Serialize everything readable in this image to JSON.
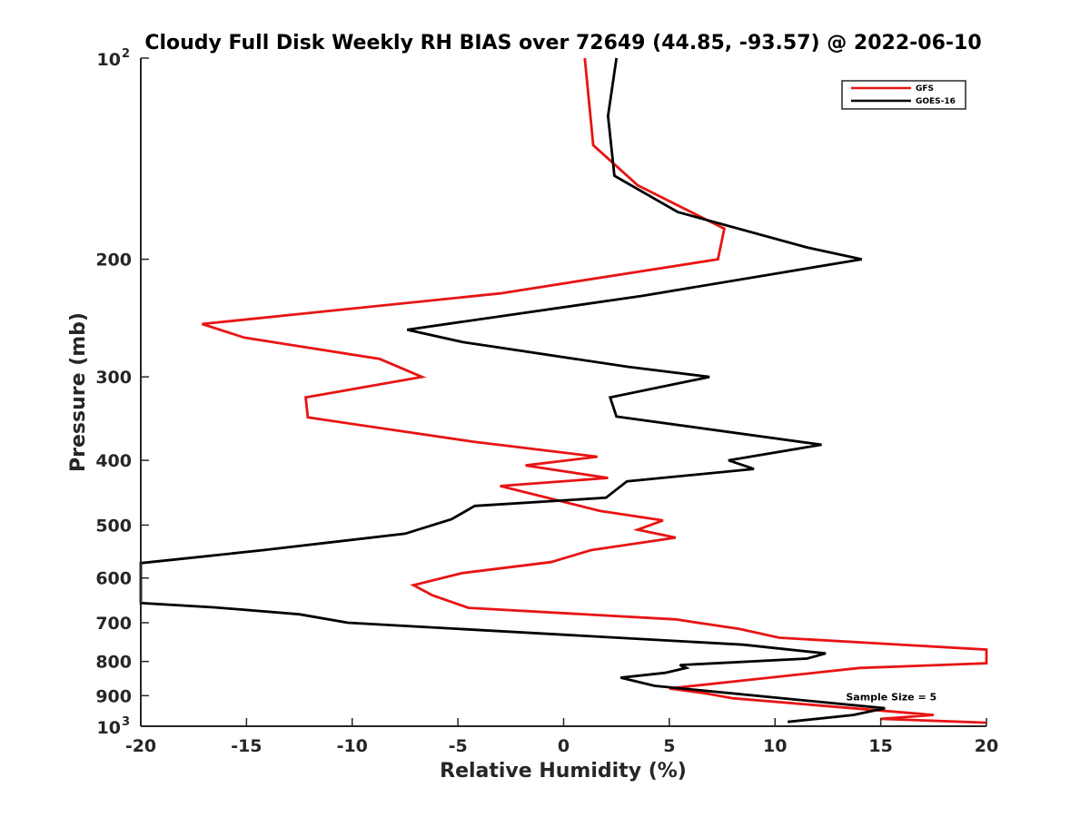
{
  "chart_data": {
    "type": "line",
    "title": "Cloudy Full Disk Weekly RH BIAS over 72649 (44.85, -93.57) @ 2022-06-10",
    "xlabel": "Relative Humidity (%)",
    "ylabel": "Pressure (mb)",
    "xlim": [
      -20,
      20
    ],
    "ylim": [
      100,
      1000
    ],
    "y_scale": "log",
    "y_reversed": true,
    "grid": false,
    "legend_position": "top-right",
    "x_ticks": [
      "-20",
      "-15",
      "-10",
      "-5",
      "0",
      "5",
      "10",
      "15",
      "20"
    ],
    "y_ticks": [
      {
        "value": 100,
        "base": "10",
        "exp": "2"
      },
      {
        "value": 200,
        "label": "200"
      },
      {
        "value": 300,
        "label": "300"
      },
      {
        "value": 400,
        "label": "400"
      },
      {
        "value": 500,
        "label": "500"
      },
      {
        "value": 600,
        "label": "600"
      },
      {
        "value": 700,
        "label": "700"
      },
      {
        "value": 800,
        "label": "800"
      },
      {
        "value": 900,
        "label": "900"
      },
      {
        "value": 1000,
        "base": "10",
        "exp": "3"
      }
    ],
    "series": [
      {
        "name": "GFS",
        "color": "#e81414",
        "points": [
          [
            1.0,
            100
          ],
          [
            1.4,
            135
          ],
          [
            3.5,
            155
          ],
          [
            7.6,
            180
          ],
          [
            7.3,
            200
          ],
          [
            -3.0,
            225
          ],
          [
            -17.1,
            250
          ],
          [
            -15.1,
            262
          ],
          [
            -8.7,
            282
          ],
          [
            -6.7,
            300
          ],
          [
            -12.2,
            322
          ],
          [
            -12.1,
            345
          ],
          [
            -4.3,
            375
          ],
          [
            1.6,
            395
          ],
          [
            -1.8,
            407
          ],
          [
            2.1,
            425
          ],
          [
            -3.0,
            437
          ],
          [
            1.7,
            476
          ],
          [
            4.7,
            492
          ],
          [
            3.5,
            508
          ],
          [
            5.3,
            522
          ],
          [
            1.3,
            545
          ],
          [
            -0.6,
            568
          ],
          [
            -4.8,
            590
          ],
          [
            -7.1,
            615
          ],
          [
            -6.2,
            637
          ],
          [
            -4.5,
            665
          ],
          [
            5.3,
            692
          ],
          [
            8.3,
            715
          ],
          [
            10.2,
            737
          ],
          [
            20,
            768
          ],
          [
            20,
            805
          ],
          [
            14.0,
            818
          ],
          [
            5.0,
            878
          ],
          [
            6.7,
            893
          ],
          [
            8.0,
            908
          ],
          [
            17.5,
            962
          ],
          [
            15.0,
            975
          ],
          [
            20,
            988
          ]
        ]
      },
      {
        "name": "GOES-16",
        "color": "#000000",
        "points": [
          [
            2.5,
            100
          ],
          [
            2.1,
            122
          ],
          [
            2.4,
            150
          ],
          [
            5.4,
            170
          ],
          [
            11.5,
            192
          ],
          [
            14.1,
            200
          ],
          [
            3.7,
            227
          ],
          [
            -7.4,
            255
          ],
          [
            -4.8,
            266
          ],
          [
            3.1,
            290
          ],
          [
            6.9,
            300
          ],
          [
            2.2,
            322
          ],
          [
            2.5,
            344
          ],
          [
            12.2,
            379
          ],
          [
            7.8,
            400
          ],
          [
            9.0,
            412
          ],
          [
            3.0,
            430
          ],
          [
            2.0,
            455
          ],
          [
            -4.2,
            468
          ],
          [
            -5.3,
            490
          ],
          [
            -7.5,
            515
          ],
          [
            -14.2,
            545
          ],
          [
            -17.7,
            560
          ],
          [
            -20,
            570
          ],
          [
            -20,
            654
          ],
          [
            -16.5,
            664
          ],
          [
            -12.5,
            680
          ],
          [
            -10.2,
            700
          ],
          [
            8.5,
            755
          ],
          [
            12.4,
            778
          ],
          [
            11.5,
            792
          ],
          [
            5.5,
            810
          ],
          [
            5.8,
            818
          ],
          [
            4.8,
            832
          ],
          [
            2.7,
            846
          ],
          [
            4.3,
            870
          ],
          [
            15.2,
            940
          ],
          [
            13.7,
            962
          ],
          [
            10.6,
            985
          ]
        ]
      }
    ],
    "annotations": [
      {
        "text": "Sample Size = 5",
        "x": 15.5,
        "y": 900
      }
    ]
  }
}
